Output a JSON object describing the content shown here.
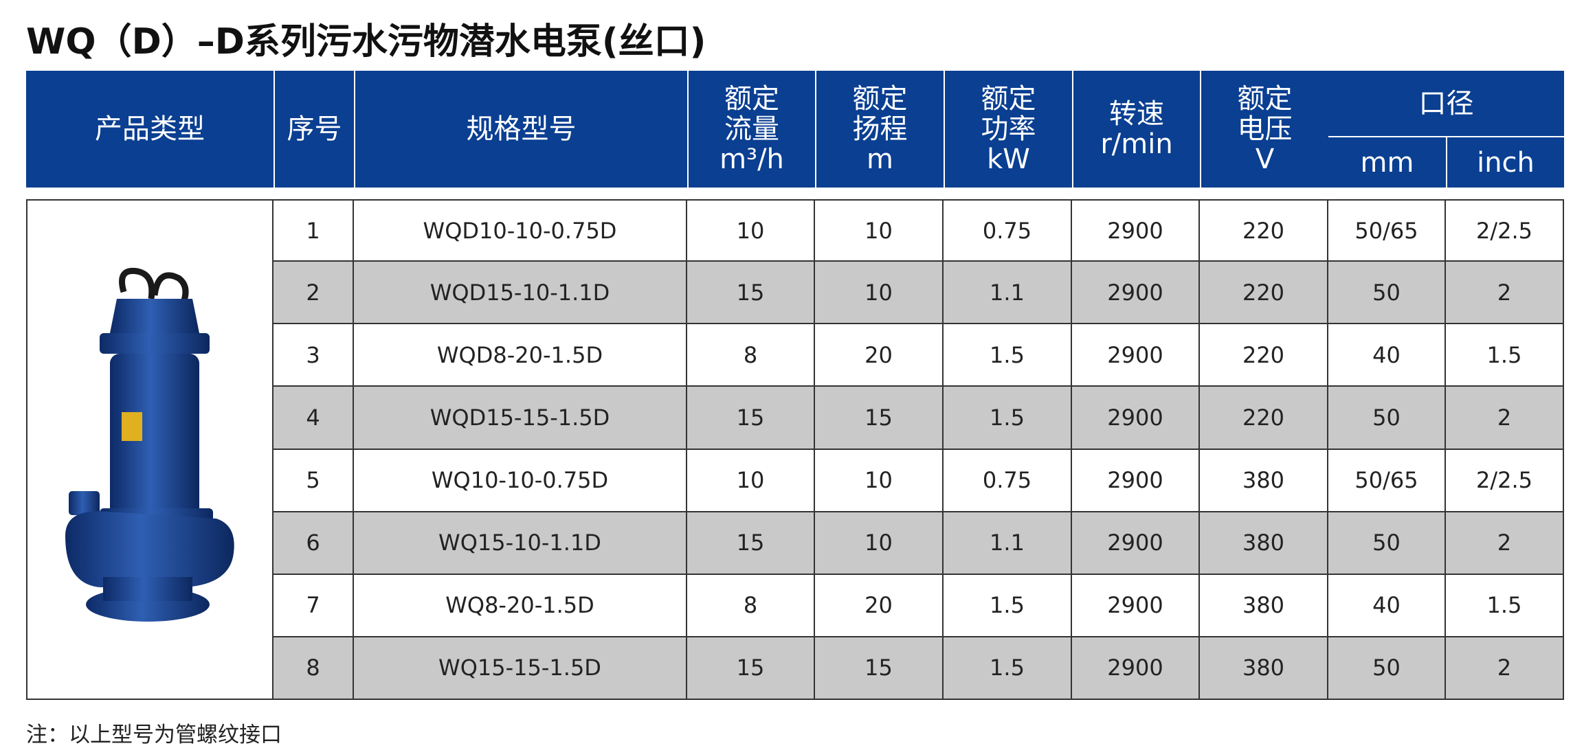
{
  "title": "WQ（D）–D系列污水污物潜水电泵(丝口)",
  "table": {
    "header": [
      {
        "label": "产品类型"
      },
      {
        "label": "序号"
      },
      {
        "label": "规格型号"
      },
      {
        "label": "额定流量",
        "unit": "m³/h"
      },
      {
        "label": "额定扬程",
        "unit": "m"
      },
      {
        "label": "额定功率",
        "unit": "kW"
      },
      {
        "label": "转速",
        "unit": "r/min"
      },
      {
        "label": "额定电压",
        "unit": "V"
      },
      {
        "label": "口径",
        "sub": [
          "mm",
          "inch"
        ]
      }
    ],
    "rows": [
      [
        "1",
        "WQD10-10-0.75D",
        "10",
        "10",
        "0.75",
        "2900",
        "220",
        "50/65",
        "2/2.5"
      ],
      [
        "2",
        "WQD15-10-1.1D",
        "15",
        "10",
        "1.1",
        "2900",
        "220",
        "50",
        "2"
      ],
      [
        "3",
        "WQD8-20-1.5D",
        "8",
        "20",
        "1.5",
        "2900",
        "220",
        "40",
        "1.5"
      ],
      [
        "4",
        "WQD15-15-1.5D",
        "15",
        "15",
        "1.5",
        "2900",
        "220",
        "50",
        "2"
      ],
      [
        "5",
        "WQ10-10-0.75D",
        "10",
        "10",
        "0.75",
        "2900",
        "380",
        "50/65",
        "2/2.5"
      ],
      [
        "6",
        "WQ15-10-1.1D",
        "15",
        "10",
        "1.1",
        "2900",
        "380",
        "50",
        "2"
      ],
      [
        "7",
        "WQ8-20-1.5D",
        "8",
        "20",
        "1.5",
        "2900",
        "380",
        "40",
        "1.5"
      ],
      [
        "8",
        "WQ15-15-1.5D",
        "15",
        "15",
        "1.5",
        "2900",
        "380",
        "50",
        "2"
      ]
    ]
  },
  "note": "注：以上型号为管螺纹接口"
}
